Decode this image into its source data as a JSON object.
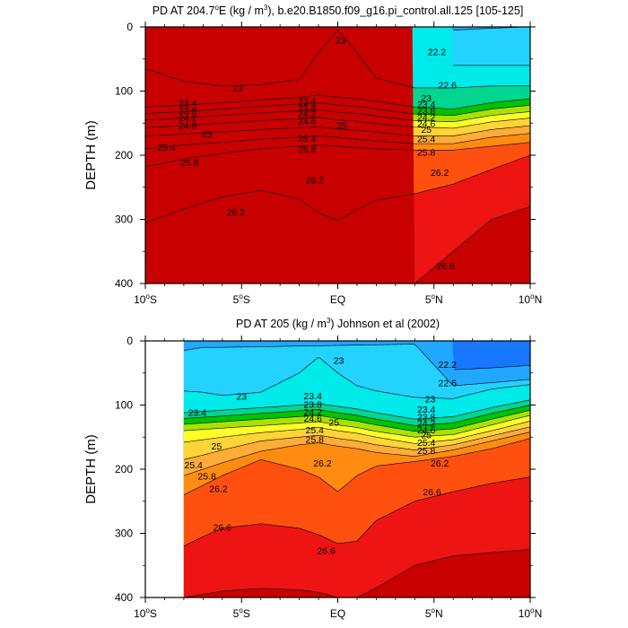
{
  "chart_data": [
    {
      "type": "contour",
      "title_parts": [
        "PD AT 204.7",
        "o",
        "E (kg / m",
        "3",
        "), b.e20.B1850.f09_g16.pi_control.all.125 [105-125]"
      ],
      "ylabel": "DEPTH (m)",
      "xlim": [
        -10,
        10
      ],
      "ylim": [
        400,
        0
      ],
      "xticks": [
        {
          "v": -10,
          "t": "10",
          "s": "o",
          "h": "S"
        },
        {
          "v": -5,
          "t": "5",
          "s": "o",
          "h": "S"
        },
        {
          "v": 0,
          "t": "EQ",
          "s": "",
          "h": ""
        },
        {
          "v": 5,
          "t": "5",
          "s": "o",
          "h": "N"
        },
        {
          "v": 10,
          "t": "10",
          "s": "o",
          "h": "N"
        }
      ],
      "yticks": [
        0,
        100,
        200,
        300,
        400
      ],
      "x": [
        -10,
        -8,
        -6,
        -4,
        -2,
        -1,
        0,
        1,
        2,
        4,
        6,
        8,
        10
      ],
      "isolines": [
        {
          "level": 22.2,
          "y": [
            null,
            null,
            null,
            null,
            null,
            null,
            null,
            null,
            null,
            null,
            5,
            2,
            0
          ]
        },
        {
          "level": 22.6,
          "y": [
            null,
            null,
            null,
            null,
            null,
            null,
            null,
            null,
            null,
            null,
            60,
            60,
            60
          ]
        },
        {
          "level": 23,
          "y": [
            65,
            85,
            92,
            90,
            82,
            40,
            5,
            40,
            80,
            95,
            95,
            92,
            92
          ]
        },
        {
          "level": 23.4,
          "y": [
            125,
            122,
            118,
            114,
            110,
            106,
            110,
            112,
            116,
            125,
            128,
            118,
            112
          ]
        },
        {
          "level": 23.8,
          "y": [
            135,
            132,
            128,
            124,
            120,
            118,
            122,
            124,
            128,
            136,
            138,
            128,
            122
          ]
        },
        {
          "level": 24.2,
          "y": [
            145,
            142,
            138,
            134,
            131,
            129,
            133,
            135,
            139,
            146,
            148,
            138,
            132
          ]
        },
        {
          "level": 24.6,
          "y": [
            157,
            154,
            150,
            146,
            143,
            141,
            145,
            147,
            151,
            156,
            158,
            148,
            142
          ]
        },
        {
          "level": 25,
          "y": [
            170,
            167,
            164,
            160,
            157,
            156,
            159,
            161,
            164,
            170,
            170,
            160,
            154
          ]
        },
        {
          "level": 25.4,
          "y": [
            190,
            184,
            180,
            175,
            172,
            170,
            172,
            175,
            178,
            182,
            182,
            172,
            166
          ]
        },
        {
          "level": 25.8,
          "y": [
            218,
            206,
            197,
            190,
            186,
            184,
            186,
            188,
            190,
            192,
            192,
            186,
            180
          ]
        },
        {
          "level": 26.2,
          "y": [
            305,
            284,
            265,
            255,
            268,
            290,
            302,
            285,
            270,
            260,
            245,
            222,
            200
          ]
        },
        {
          "level": 26.6,
          "y": [
            null,
            null,
            null,
            null,
            null,
            null,
            null,
            null,
            null,
            400,
            350,
            300,
            280
          ]
        }
      ],
      "labels": [
        {
          "text": "23",
          "x": -5.2,
          "y": 97
        },
        {
          "text": "23",
          "x": 0.15,
          "y": 22
        },
        {
          "text": "22.6",
          "x": 5.7,
          "y": 92
        },
        {
          "text": "22.2",
          "x": 5.15,
          "y": 40
        },
        {
          "text": "23.4",
          "x": -7.8,
          "y": 120
        },
        {
          "text": "23.8",
          "x": -7.8,
          "y": 132
        },
        {
          "text": "24.2",
          "x": -7.8,
          "y": 143
        },
        {
          "text": "24.6",
          "x": -7.8,
          "y": 155
        },
        {
          "text": "23.4",
          "x": -1.6,
          "y": 117
        },
        {
          "text": "23.8",
          "x": -1.6,
          "y": 127
        },
        {
          "text": "24.2",
          "x": -1.6,
          "y": 137
        },
        {
          "text": "24.6",
          "x": -1.6,
          "y": 148
        },
        {
          "text": "25",
          "x": 0.2,
          "y": 155
        },
        {
          "text": "23",
          "x": 4.6,
          "y": 112
        },
        {
          "text": "23.4",
          "x": 4.6,
          "y": 122
        },
        {
          "text": "23.8",
          "x": 4.6,
          "y": 132
        },
        {
          "text": "24.2",
          "x": 4.6,
          "y": 142
        },
        {
          "text": "24.6",
          "x": 4.6,
          "y": 152
        },
        {
          "text": "25",
          "x": 4.6,
          "y": 161
        },
        {
          "text": "25",
          "x": -6.8,
          "y": 168
        },
        {
          "text": "25.4",
          "x": -1.6,
          "y": 175
        },
        {
          "text": "25.4",
          "x": 4.6,
          "y": 176
        },
        {
          "text": "25.4",
          "x": -8.9,
          "y": 189
        },
        {
          "text": "25.8",
          "x": -1.6,
          "y": 192
        },
        {
          "text": "25.8",
          "x": 4.6,
          "y": 197
        },
        {
          "text": "25.8",
          "x": -7.7,
          "y": 213
        },
        {
          "text": "26.2",
          "x": -1.2,
          "y": 240
        },
        {
          "text": "26.2",
          "x": 5.3,
          "y": 228
        },
        {
          "text": "26.2",
          "x": -5.3,
          "y": 290
        },
        {
          "text": "26.6",
          "x": 5.6,
          "y": 374
        }
      ]
    },
    {
      "type": "contour",
      "title_parts": [
        "PD AT 205 (kg / m",
        "3",
        ") Johnson et al (2002)"
      ],
      "ylabel": "DEPTH (m)",
      "xlim": [
        -10,
        10
      ],
      "ylim": [
        400,
        0
      ],
      "data_xmin": -8,
      "xticks": [
        {
          "v": -10,
          "t": "10",
          "s": "o",
          "h": "S"
        },
        {
          "v": -5,
          "t": "5",
          "s": "o",
          "h": "S"
        },
        {
          "v": 0,
          "t": "EQ",
          "s": "",
          "h": ""
        },
        {
          "v": 5,
          "t": "5",
          "s": "o",
          "h": "N"
        },
        {
          "v": 10,
          "t": "10",
          "s": "o",
          "h": "N"
        }
      ],
      "yticks": [
        0,
        100,
        200,
        300,
        400
      ],
      "x": [
        -8,
        -7,
        -6,
        -4,
        -2,
        -1,
        0,
        1,
        2,
        4,
        6,
        8,
        10
      ],
      "isolines": [
        {
          "level": 22.2,
          "y": [
            null,
            null,
            null,
            null,
            null,
            null,
            null,
            null,
            null,
            null,
            45,
            42,
            38
          ]
        },
        {
          "level": 22.6,
          "y": [
            15,
            10,
            10,
            null,
            null,
            null,
            null,
            null,
            null,
            5,
            70,
            65,
            60
          ]
        },
        {
          "level": 23,
          "y": [
            78,
            80,
            85,
            80,
            50,
            25,
            50,
            70,
            78,
            88,
            90,
            75,
            68
          ]
        },
        {
          "level": 23.4,
          "y": [
            112,
            110,
            108,
            104,
            100,
            98,
            102,
            106,
            112,
            122,
            118,
            104,
            92
          ]
        },
        {
          "level": 23.8,
          "y": [
            121,
            119,
            117,
            113,
            109,
            107,
            112,
            116,
            122,
            132,
            128,
            113,
            100
          ]
        },
        {
          "level": 24.2,
          "y": [
            130,
            128,
            126,
            122,
            118,
            116,
            121,
            125,
            131,
            141,
            137,
            122,
            108
          ]
        },
        {
          "level": 24.6,
          "y": [
            140,
            138,
            136,
            132,
            128,
            126,
            131,
            135,
            141,
            150,
            146,
            131,
            116
          ]
        },
        {
          "level": 25,
          "y": [
            158,
            154,
            150,
            143,
            138,
            135,
            140,
            144,
            150,
            160,
            154,
            140,
            125
          ]
        },
        {
          "level": 25.4,
          "y": [
            185,
            178,
            170,
            156,
            150,
            147,
            152,
            156,
            162,
            170,
            162,
            148,
            134
          ]
        },
        {
          "level": 25.8,
          "y": [
            210,
            200,
            190,
            172,
            162,
            159,
            164,
            168,
            174,
            180,
            170,
            156,
            142
          ]
        },
        {
          "level": 26.2,
          "y": [
            240,
            225,
            210,
            185,
            200,
            212,
            235,
            210,
            195,
            188,
            180,
            168,
            152
          ]
        },
        {
          "level": 26.6,
          "y": [
            320,
            305,
            292,
            285,
            292,
            302,
            316,
            312,
            280,
            250,
            235,
            222,
            212
          ]
        },
        {
          "level": 27,
          "y": [
            400,
            395,
            390,
            386,
            388,
            392,
            400,
            400,
            385,
            350,
            335,
            330,
            325
          ]
        }
      ],
      "labels": [
        {
          "text": "22.2",
          "x": 5.7,
          "y": 38
        },
        {
          "text": "22.6",
          "x": 5.7,
          "y": 67
        },
        {
          "text": "23",
          "x": 0.05,
          "y": 32
        },
        {
          "text": "23",
          "x": -5.0,
          "y": 88
        },
        {
          "text": "23",
          "x": 4.8,
          "y": 92
        },
        {
          "text": "23.4",
          "x": -7.3,
          "y": 113
        },
        {
          "text": "23.4",
          "x": -1.3,
          "y": 87
        },
        {
          "text": "23.8",
          "x": -1.3,
          "y": 100
        },
        {
          "text": "24.2",
          "x": -1.3,
          "y": 112
        },
        {
          "text": "24.6",
          "x": -1.3,
          "y": 122
        },
        {
          "text": "25",
          "x": -0.2,
          "y": 128
        },
        {
          "text": "23.4",
          "x": 4.6,
          "y": 108
        },
        {
          "text": "23.8",
          "x": 4.6,
          "y": 120
        },
        {
          "text": "24.2",
          "x": 4.6,
          "y": 130
        },
        {
          "text": "24.6",
          "x": 4.6,
          "y": 140
        },
        {
          "text": "25",
          "x": 4.6,
          "y": 148
        },
        {
          "text": "25",
          "x": -6.3,
          "y": 165
        },
        {
          "text": "25.4",
          "x": -1.2,
          "y": 140
        },
        {
          "text": "25.8",
          "x": -1.2,
          "y": 155
        },
        {
          "text": "25.4",
          "x": 4.6,
          "y": 160
        },
        {
          "text": "25.8",
          "x": 4.6,
          "y": 172
        },
        {
          "text": "25.4",
          "x": -7.5,
          "y": 195
        },
        {
          "text": "25.8",
          "x": -6.8,
          "y": 212
        },
        {
          "text": "26.2",
          "x": -6.2,
          "y": 232
        },
        {
          "text": "26.2",
          "x": -0.8,
          "y": 192
        },
        {
          "text": "26.2",
          "x": 5.3,
          "y": 192
        },
        {
          "text": "26.6",
          "x": -6.0,
          "y": 292
        },
        {
          "text": "26.6",
          "x": 4.9,
          "y": 237
        },
        {
          "text": "26.6",
          "x": -0.6,
          "y": 328
        }
      ]
    }
  ],
  "palette": [
    "#cc00ff",
    "#7a14ff",
    "#0a1cf0",
    "#1877ff",
    "#20a8ff",
    "#24d2ff",
    "#00eaea",
    "#00d690",
    "#00c400",
    "#a8e200",
    "#ffff28",
    "#ffd436",
    "#ffac38",
    "#ff8c10",
    "#ff5010",
    "#ee1414",
    "#c80000"
  ]
}
